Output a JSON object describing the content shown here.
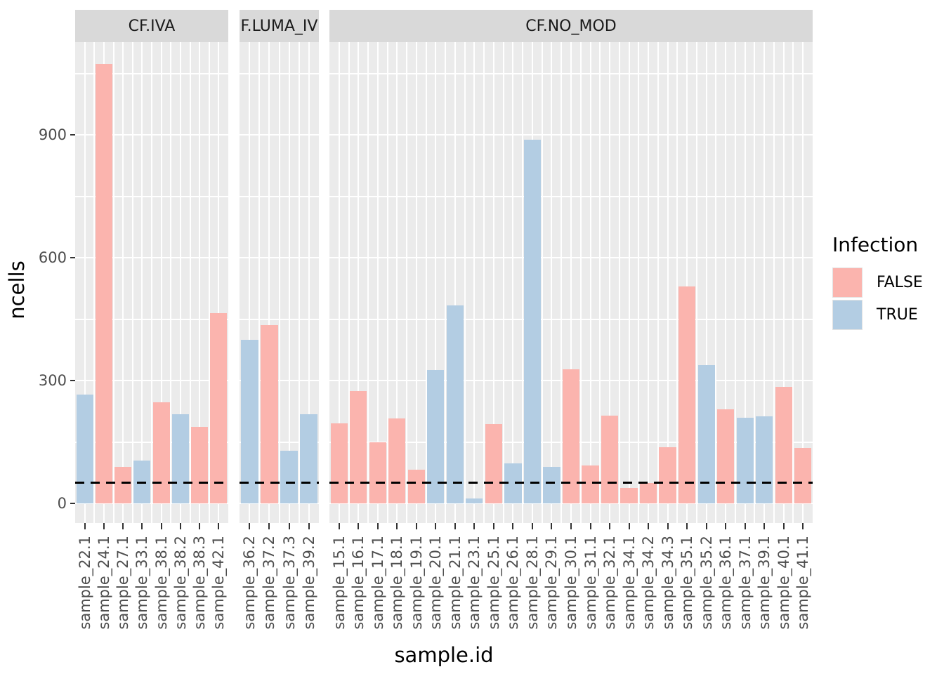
{
  "chart_data": {
    "type": "bar",
    "title": "",
    "xlabel": "sample.id",
    "ylabel": "ncells",
    "ylim": [
      0,
      1126
    ],
    "y_ticks": [
      0,
      300,
      600,
      900
    ],
    "y_minor_gridlines": [
      150,
      450,
      750,
      1050
    ],
    "grid": true,
    "hline": {
      "value": 50,
      "style": "dashed",
      "color": "#000000"
    },
    "legend": {
      "title": "Infection",
      "position": "right",
      "entries": [
        {
          "label": "FALSE",
          "color": "#FBB4AE"
        },
        {
          "label": "TRUE",
          "color": "#B3CDE3"
        }
      ]
    },
    "colors": {
      "FALSE": "#FBB4AE",
      "TRUE": "#B3CDE3",
      "panel_bg": "#EBEBEB",
      "strip_bg": "#D9D9D9",
      "gridline": "#FFFFFF",
      "axis_text": "#4D4D4D",
      "strip_text": "#1A1A1A"
    },
    "facets": [
      {
        "label": "CF.IVA",
        "bars": [
          {
            "sample": "sample_22.1",
            "ncells": 265,
            "infection": "TRUE"
          },
          {
            "sample": "sample_24.1",
            "ncells": 1073,
            "infection": "FALSE"
          },
          {
            "sample": "sample_27.1",
            "ncells": 89,
            "infection": "FALSE"
          },
          {
            "sample": "sample_33.1",
            "ncells": 105,
            "infection": "TRUE"
          },
          {
            "sample": "sample_38.1",
            "ncells": 247,
            "infection": "FALSE"
          },
          {
            "sample": "sample_38.2",
            "ncells": 218,
            "infection": "TRUE"
          },
          {
            "sample": "sample_38.3",
            "ncells": 187,
            "infection": "FALSE"
          },
          {
            "sample": "sample_42.1",
            "ncells": 465,
            "infection": "FALSE"
          }
        ]
      },
      {
        "label": "F.LUMA_IV",
        "bars": [
          {
            "sample": "sample_36.2",
            "ncells": 400,
            "infection": "TRUE"
          },
          {
            "sample": "sample_37.2",
            "ncells": 435,
            "infection": "FALSE"
          },
          {
            "sample": "sample_37.3",
            "ncells": 129,
            "infection": "TRUE"
          },
          {
            "sample": "sample_39.2",
            "ncells": 218,
            "infection": "TRUE"
          }
        ]
      },
      {
        "label": "CF.NO_MOD",
        "bars": [
          {
            "sample": "sample_15.1",
            "ncells": 195,
            "infection": "FALSE"
          },
          {
            "sample": "sample_16.1",
            "ncells": 275,
            "infection": "FALSE"
          },
          {
            "sample": "sample_17.1",
            "ncells": 150,
            "infection": "FALSE"
          },
          {
            "sample": "sample_18.1",
            "ncells": 207,
            "infection": "FALSE"
          },
          {
            "sample": "sample_19.1",
            "ncells": 83,
            "infection": "FALSE"
          },
          {
            "sample": "sample_20.1",
            "ncells": 325,
            "infection": "TRUE"
          },
          {
            "sample": "sample_21.1",
            "ncells": 483,
            "infection": "TRUE"
          },
          {
            "sample": "sample_23.1",
            "ncells": 12,
            "infection": "TRUE"
          },
          {
            "sample": "sample_25.1",
            "ncells": 193,
            "infection": "FALSE"
          },
          {
            "sample": "sample_26.1",
            "ncells": 97,
            "infection": "TRUE"
          },
          {
            "sample": "sample_28.1",
            "ncells": 888,
            "infection": "TRUE"
          },
          {
            "sample": "sample_29.1",
            "ncells": 89,
            "infection": "TRUE"
          },
          {
            "sample": "sample_30.1",
            "ncells": 327,
            "infection": "FALSE"
          },
          {
            "sample": "sample_31.1",
            "ncells": 92,
            "infection": "FALSE"
          },
          {
            "sample": "sample_32.1",
            "ncells": 214,
            "infection": "FALSE"
          },
          {
            "sample": "sample_34.1",
            "ncells": 38,
            "infection": "FALSE"
          },
          {
            "sample": "sample_34.2",
            "ncells": 49,
            "infection": "FALSE"
          },
          {
            "sample": "sample_34.3",
            "ncells": 138,
            "infection": "FALSE"
          },
          {
            "sample": "sample_35.1",
            "ncells": 530,
            "infection": "FALSE"
          },
          {
            "sample": "sample_35.2",
            "ncells": 338,
            "infection": "TRUE"
          },
          {
            "sample": "sample_36.1",
            "ncells": 230,
            "infection": "FALSE"
          },
          {
            "sample": "sample_37.1",
            "ncells": 210,
            "infection": "TRUE"
          },
          {
            "sample": "sample_39.1",
            "ncells": 213,
            "infection": "TRUE"
          },
          {
            "sample": "sample_40.1",
            "ncells": 285,
            "infection": "FALSE"
          },
          {
            "sample": "sample_41.1",
            "ncells": 135,
            "infection": "FALSE"
          }
        ]
      }
    ]
  }
}
